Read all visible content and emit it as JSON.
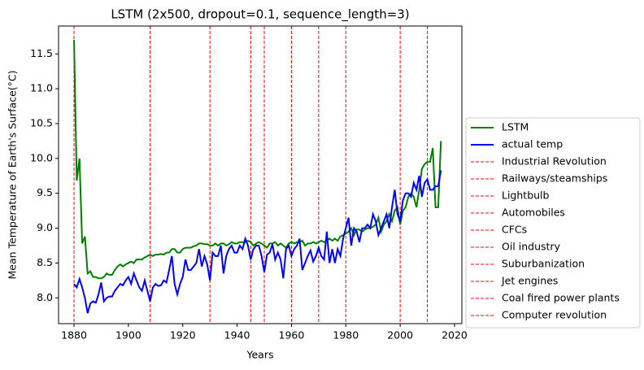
{
  "chart_data": {
    "type": "line",
    "title": "LSTM (2x500, dropout=0.1, sequence_length=3)",
    "x_label": "Years",
    "y_label": "Mean Temperature of Earth's Surface(°C)",
    "x": [
      1880,
      1881,
      1882,
      1883,
      1884,
      1885,
      1886,
      1887,
      1888,
      1889,
      1890,
      1891,
      1892,
      1893,
      1894,
      1895,
      1896,
      1897,
      1898,
      1899,
      1900,
      1901,
      1902,
      1903,
      1904,
      1905,
      1906,
      1907,
      1908,
      1909,
      1910,
      1911,
      1912,
      1913,
      1914,
      1915,
      1916,
      1917,
      1918,
      1919,
      1920,
      1921,
      1922,
      1923,
      1924,
      1925,
      1926,
      1927,
      1928,
      1929,
      1930,
      1931,
      1932,
      1933,
      1934,
      1935,
      1936,
      1937,
      1938,
      1939,
      1940,
      1941,
      1942,
      1943,
      1944,
      1945,
      1946,
      1947,
      1948,
      1949,
      1950,
      1951,
      1952,
      1953,
      1954,
      1955,
      1956,
      1957,
      1958,
      1959,
      1960,
      1961,
      1962,
      1963,
      1964,
      1965,
      1966,
      1967,
      1968,
      1969,
      1970,
      1971,
      1972,
      1973,
      1974,
      1975,
      1976,
      1977,
      1978,
      1979,
      1980,
      1981,
      1982,
      1983,
      1984,
      1985,
      1986,
      1987,
      1988,
      1989,
      1990,
      1991,
      1992,
      1993,
      1994,
      1995,
      1996,
      1997,
      1998,
      1999,
      2000,
      2001,
      2002,
      2003,
      2004,
      2005,
      2006,
      2007,
      2008,
      2009,
      2010,
      2011,
      2012,
      2013,
      2014,
      2015
    ],
    "series": [
      {
        "name": "LSTM",
        "color": "#008000",
        "values": [
          11.7,
          9.68,
          10.0,
          8.78,
          8.88,
          8.35,
          8.38,
          8.3,
          8.3,
          8.28,
          8.28,
          8.3,
          8.35,
          8.33,
          8.33,
          8.4,
          8.45,
          8.48,
          8.45,
          8.48,
          8.5,
          8.52,
          8.5,
          8.55,
          8.55,
          8.55,
          8.58,
          8.6,
          8.62,
          8.6,
          8.62,
          8.62,
          8.63,
          8.62,
          8.65,
          8.65,
          8.7,
          8.7,
          8.65,
          8.65,
          8.7,
          8.72,
          8.72,
          8.72,
          8.74,
          8.75,
          8.78,
          8.78,
          8.77,
          8.77,
          8.75,
          8.75,
          8.78,
          8.75,
          8.78,
          8.78,
          8.75,
          8.77,
          8.8,
          8.78,
          8.78,
          8.8,
          8.8,
          8.8,
          8.82,
          8.8,
          8.75,
          8.78,
          8.8,
          8.78,
          8.75,
          8.72,
          8.78,
          8.78,
          8.8,
          8.75,
          8.78,
          8.75,
          8.72,
          8.78,
          8.8,
          8.78,
          8.8,
          8.8,
          8.82,
          8.75,
          8.78,
          8.78,
          8.8,
          8.78,
          8.8,
          8.82,
          8.8,
          8.82,
          8.85,
          8.82,
          8.85,
          8.82,
          8.88,
          8.9,
          8.92,
          8.95,
          9.0,
          8.9,
          8.98,
          8.98,
          8.95,
          8.98,
          9.0,
          9.0,
          9.02,
          9.05,
          9.15,
          8.95,
          9.05,
          9.1,
          9.2,
          9.1,
          9.25,
          9.3,
          9.05,
          9.25,
          9.3,
          9.45,
          9.5,
          9.45,
          9.3,
          9.55,
          9.85,
          9.92,
          9.95,
          9.95,
          10.15,
          9.3,
          9.3,
          10.25
        ]
      },
      {
        "name": "actual temp",
        "color": "#0000ff",
        "values": [
          8.2,
          8.15,
          8.27,
          8.15,
          8.0,
          7.78,
          7.92,
          7.95,
          7.93,
          8.05,
          8.22,
          7.95,
          8.0,
          8.02,
          8.02,
          8.1,
          8.15,
          8.2,
          8.18,
          8.25,
          8.3,
          8.2,
          8.35,
          8.25,
          8.15,
          8.1,
          8.25,
          8.1,
          7.95,
          8.15,
          8.2,
          8.17,
          8.18,
          8.25,
          8.22,
          8.4,
          8.6,
          8.2,
          8.05,
          8.2,
          8.3,
          8.55,
          8.4,
          8.4,
          8.45,
          8.5,
          8.7,
          8.45,
          8.6,
          8.48,
          8.25,
          8.65,
          8.6,
          8.6,
          8.75,
          8.35,
          8.6,
          8.7,
          8.75,
          8.65,
          8.65,
          8.75,
          8.7,
          8.85,
          8.75,
          8.55,
          8.7,
          8.75,
          8.75,
          8.6,
          8.37,
          8.62,
          8.65,
          8.77,
          8.55,
          8.65,
          8.55,
          8.28,
          8.7,
          8.75,
          8.6,
          8.7,
          8.75,
          8.85,
          8.4,
          8.5,
          8.6,
          8.68,
          8.52,
          8.6,
          8.72,
          8.6,
          8.55,
          8.95,
          8.5,
          8.7,
          8.5,
          8.7,
          8.6,
          8.85,
          9.0,
          9.15,
          8.75,
          9.0,
          8.95,
          8.8,
          9.0,
          9.0,
          9.05,
          9.0,
          9.2,
          9.1,
          8.9,
          9.0,
          9.1,
          9.2,
          9.0,
          9.3,
          9.55,
          9.2,
          9.1,
          9.4,
          9.5,
          9.5,
          9.45,
          9.65,
          9.55,
          9.75,
          9.45,
          9.65,
          9.7,
          9.55,
          9.55,
          9.6,
          9.6,
          9.83
        ]
      }
    ],
    "vlines": [
      {
        "name": "Industrial Revolution",
        "x": 1880,
        "color": "#ff0000"
      },
      {
        "name": "Railways/steamships",
        "x": 1908,
        "color": "#ff0000"
      },
      {
        "name": "Lightbulb",
        "x": 1930,
        "color": "#ff0000"
      },
      {
        "name": "Automobiles",
        "x": 1945,
        "color": "#ff0000"
      },
      {
        "name": "CFCs",
        "x": 1950,
        "color": "#ff0000"
      },
      {
        "name": "Oil industry",
        "x": 1960,
        "color": "#ff0000"
      },
      {
        "name": "Suburbanization",
        "x": 1970,
        "color": "#ff0000"
      },
      {
        "name": "Jet engines",
        "x": 1980,
        "color": "#ff0000"
      },
      {
        "name": "Coal fired power plants",
        "x": 2000,
        "color": "#ff0000"
      },
      {
        "name": "Computer revolution",
        "x": 2010,
        "color": "#ff0000"
      }
    ],
    "xlim": [
      1874.3,
      2022.7
    ],
    "ylim": [
      7.63,
      11.9
    ],
    "xticks": [
      1880,
      1900,
      1920,
      1940,
      1960,
      1980,
      2000,
      2020
    ],
    "yticks": [
      {
        "value": 8.0,
        "label": "8.0"
      },
      {
        "value": 8.5,
        "label": "8.5"
      },
      {
        "value": 9.0,
        "label": "9.0"
      },
      {
        "value": 9.5,
        "label": "9.5"
      },
      {
        "value": 10.0,
        "label": "10.0"
      },
      {
        "value": 10.5,
        "label": "10.5"
      },
      {
        "value": 11.0,
        "label": "11.0"
      },
      {
        "value": 11.5,
        "label": "11.5"
      }
    ],
    "legend": "outside-right"
  }
}
